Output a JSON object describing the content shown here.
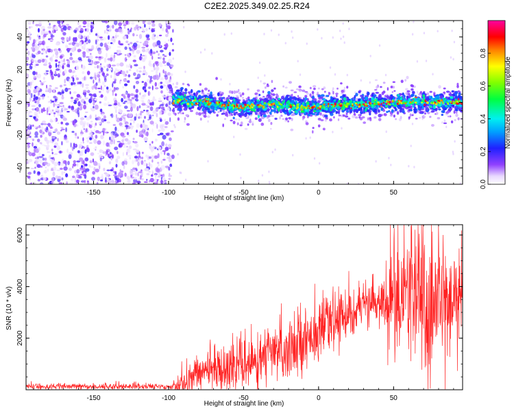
{
  "title": "C2E2.2025.349.02.25.R24",
  "chart_data": [
    {
      "type": "heatmap",
      "xlabel": "Height of straight line (km)",
      "ylabel": "Frequency (Hz)",
      "xlim": [
        -195,
        96
      ],
      "ylim": [
        -50,
        50
      ],
      "x_ticks": [
        "-150",
        "-100",
        "-50",
        "0",
        "50"
      ],
      "y_ticks": [
        "-40",
        "-20",
        "0",
        "20",
        "40"
      ],
      "colorbar": {
        "label": "Normalized spectral amplitude",
        "range": [
          0,
          1
        ],
        "ticks": [
          "0.0",
          "0.2",
          "0.4",
          "0.6",
          "0.8"
        ]
      },
      "noise_region_x": [
        -195,
        -97
      ],
      "signal_region_x": [
        -97,
        96
      ],
      "signal_frequency_trend": [
        {
          "x": -95,
          "y": 1
        },
        {
          "x": -75,
          "y": 0
        },
        {
          "x": -50,
          "y": -3
        },
        {
          "x": -30,
          "y": -1
        },
        {
          "x": -10,
          "y": -3
        },
        {
          "x": 10,
          "y": -2
        },
        {
          "x": 30,
          "y": -1
        },
        {
          "x": 50,
          "y": 0
        },
        {
          "x": 70,
          "y": 0
        },
        {
          "x": 95,
          "y": 0
        }
      ]
    },
    {
      "type": "line",
      "xlabel": "Height of straight line (km)",
      "ylabel": "SNR (10 * v/v)",
      "xlim": [
        -195,
        96
      ],
      "ylim": [
        0,
        6400
      ],
      "x_ticks": [
        "-150",
        "-100",
        "-50",
        "0",
        "50"
      ],
      "y_ticks": [
        "2000",
        "4000",
        "6000"
      ],
      "color": "#ff2020",
      "trend": [
        {
          "x": -195,
          "y": 120
        },
        {
          "x": -100,
          "y": 130
        },
        {
          "x": -90,
          "y": 200
        },
        {
          "x": -80,
          "y": 700
        },
        {
          "x": -60,
          "y": 900
        },
        {
          "x": -40,
          "y": 1100
        },
        {
          "x": -20,
          "y": 1700
        },
        {
          "x": 0,
          "y": 2300
        },
        {
          "x": 20,
          "y": 3000
        },
        {
          "x": 40,
          "y": 3400
        },
        {
          "x": 60,
          "y": 3500
        },
        {
          "x": 80,
          "y": 3400
        },
        {
          "x": 96,
          "y": 3600
        }
      ],
      "spread": [
        {
          "x": -195,
          "y": 60
        },
        {
          "x": -100,
          "y": 60
        },
        {
          "x": -85,
          "y": 350
        },
        {
          "x": -50,
          "y": 500
        },
        {
          "x": -20,
          "y": 650
        },
        {
          "x": 20,
          "y": 500
        },
        {
          "x": 40,
          "y": 400
        },
        {
          "x": 55,
          "y": 1500
        },
        {
          "x": 70,
          "y": 1700
        },
        {
          "x": 96,
          "y": 900
        }
      ]
    }
  ]
}
